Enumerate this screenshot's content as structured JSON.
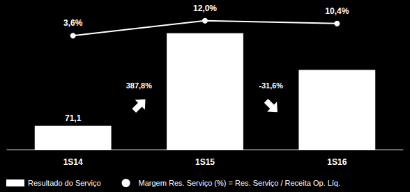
{
  "chart_data": {
    "type": "bar",
    "categories": [
      "1S14",
      "1S15",
      "1S16"
    ],
    "series": [
      {
        "name": "Resultado do Serviço",
        "type": "bar",
        "color": "#ffffff",
        "values": [
          71.1,
          346.8,
          237.2
        ],
        "value_labels": [
          "71,1",
          null,
          null
        ]
      },
      {
        "name": "Margem Res. Serviço (%) = Res. Serviço / Receita Op. Líq.",
        "type": "line",
        "axis": "y2",
        "color": "#ffffff",
        "marker": "circle",
        "values": [
          3.6,
          12.0,
          10.4
        ],
        "value_labels": [
          "3,6%",
          "12,0%",
          "10,4%"
        ]
      }
    ],
    "annotations": [
      "387,8%",
      "-31,6%"
    ],
    "ylim": [
      0,
      400
    ],
    "y2lim": [
      -60,
      15
    ],
    "grid": false,
    "legend": "bottom",
    "data_labels": true,
    "tick_labels": "x"
  }
}
